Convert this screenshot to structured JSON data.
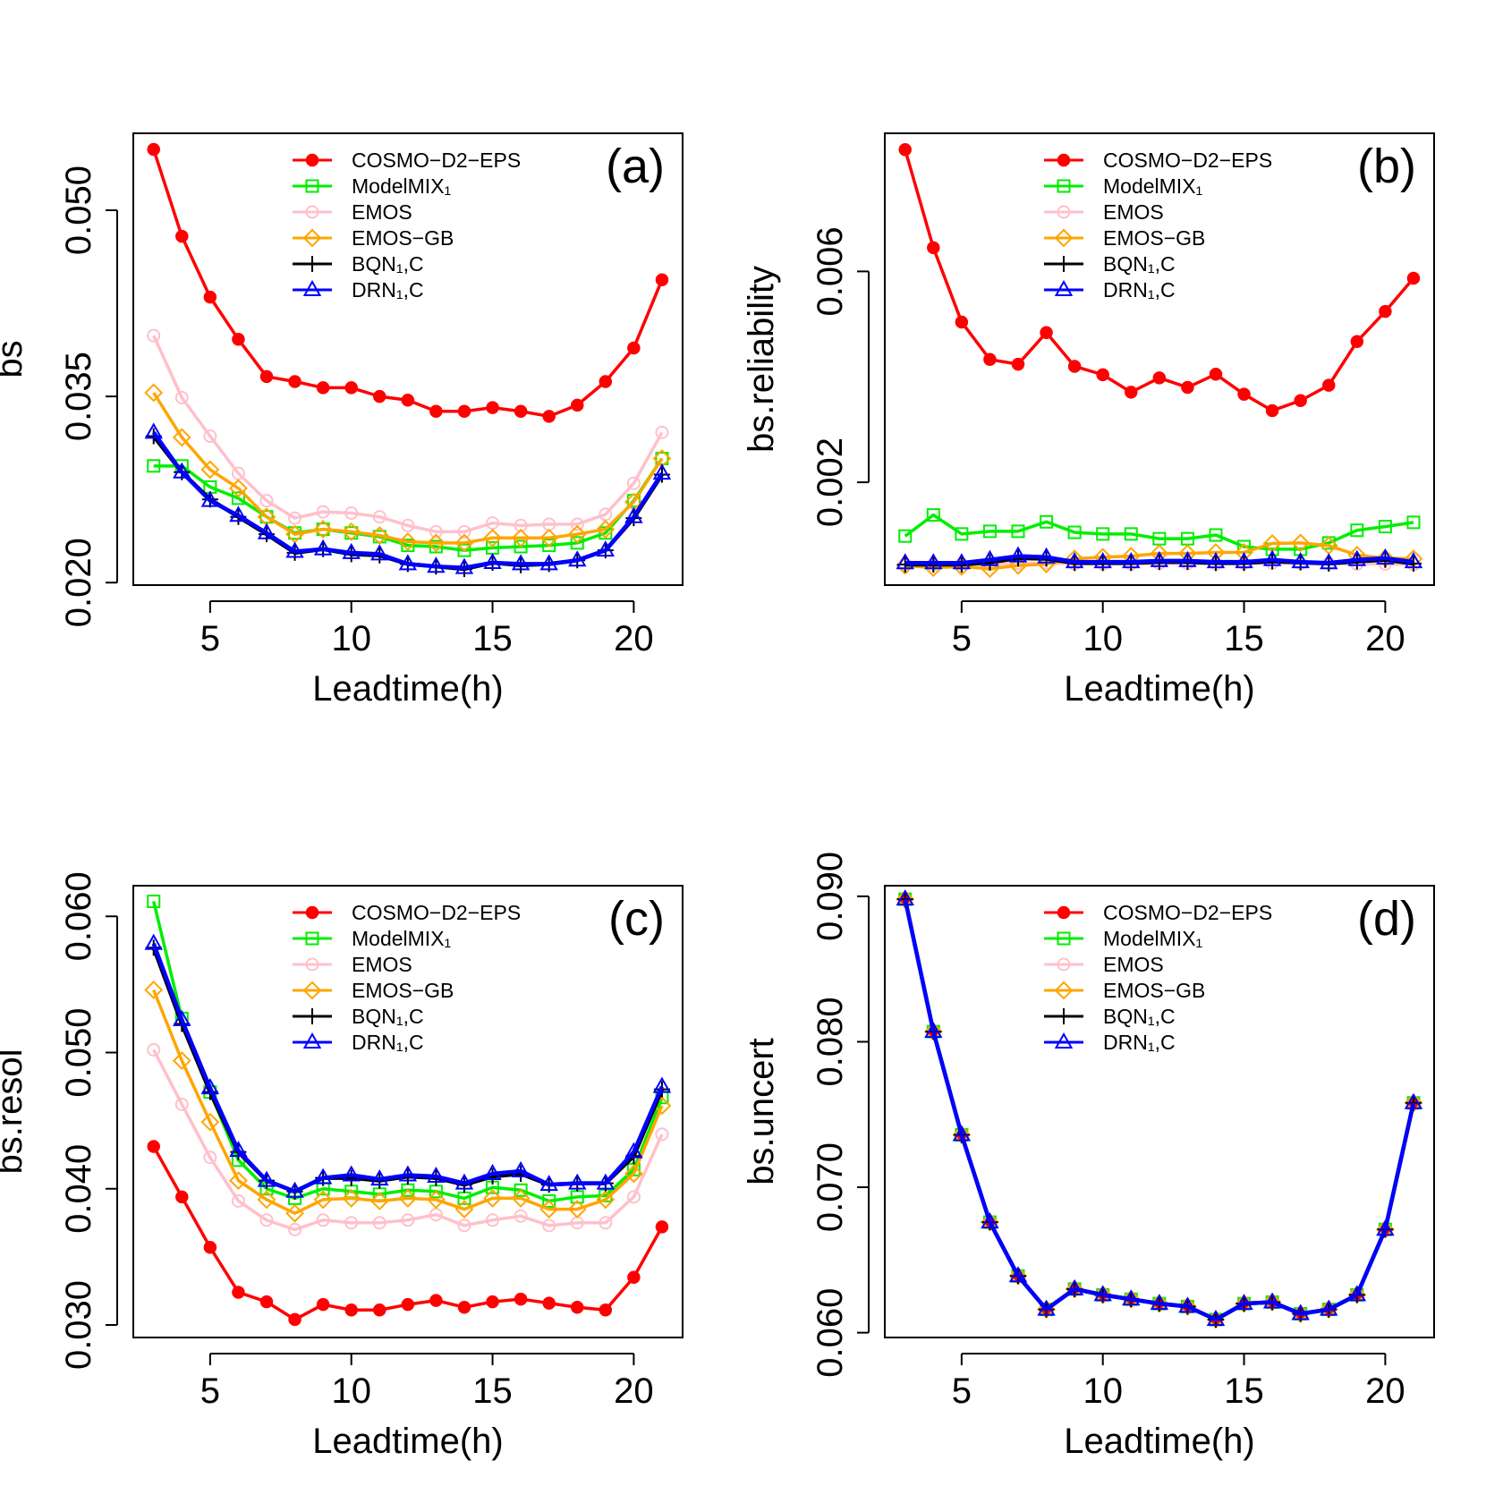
{
  "chart_data": [
    {
      "type": "line",
      "panel_label": "(a)",
      "xlabel": "Leadtime(h)",
      "ylabel": "bs",
      "x": [
        3,
        4,
        5,
        6,
        7,
        8,
        9,
        10,
        11,
        12,
        13,
        14,
        15,
        16,
        17,
        18,
        19,
        20,
        21
      ],
      "xlim": [
        2.28,
        21.73
      ],
      "xticks": [
        5,
        10,
        15,
        20
      ],
      "ylim": [
        0.0198,
        0.0562
      ],
      "yticks": [
        {
          "value": 0.02,
          "label": "0.020"
        },
        0.035,
        {
          "value": 0.05,
          "label": "0.050"
        }
      ],
      "legend": "top",
      "grid": false,
      "series": [
        {
          "name": "COSMO−D2−EPS",
          "color": "#ff0000",
          "marker": "filled-circle",
          "values": [
            0.0549,
            0.0479,
            0.043,
            0.0396,
            0.0366,
            0.0362,
            0.0357,
            0.0357,
            0.035,
            0.0347,
            0.0338,
            0.0338,
            0.0341,
            0.0338,
            0.0334,
            0.0343,
            0.0362,
            0.0389,
            0.0444
          ]
        },
        {
          "name": "ModelMIX₁",
          "color": "#00ee00",
          "marker": "square",
          "values": [
            0.0294,
            0.0294,
            0.0277,
            0.0268,
            0.0253,
            0.024,
            0.0243,
            0.024,
            0.0237,
            0.023,
            0.0229,
            0.0226,
            0.0228,
            0.0229,
            0.023,
            0.0232,
            0.024,
            0.0266,
            0.03
          ]
        },
        {
          "name": "EMOS",
          "color": "#ffc0cb",
          "marker": "circle",
          "values": [
            0.0399,
            0.0349,
            0.0318,
            0.0288,
            0.0266,
            0.0252,
            0.0257,
            0.0256,
            0.0253,
            0.0246,
            0.0241,
            0.0241,
            0.0248,
            0.0246,
            0.0247,
            0.0247,
            0.0255,
            0.028,
            0.0321
          ]
        },
        {
          "name": "EMOS−GB",
          "color": "#ffa500",
          "marker": "diamond",
          "values": [
            0.0353,
            0.0317,
            0.0291,
            0.0276,
            0.0253,
            0.0239,
            0.0243,
            0.0241,
            0.0238,
            0.0233,
            0.0232,
            0.0232,
            0.0236,
            0.0236,
            0.0236,
            0.0239,
            0.0243,
            0.0265,
            0.03
          ]
        },
        {
          "name": "BQN₁,C",
          "color": "#000000",
          "marker": "plus",
          "values": [
            0.0318,
            0.0289,
            0.0267,
            0.0253,
            0.0239,
            0.0224,
            0.0227,
            0.0223,
            0.0222,
            0.0215,
            0.0213,
            0.0211,
            0.0216,
            0.0214,
            0.0215,
            0.0218,
            0.0226,
            0.0252,
            0.0287
          ]
        },
        {
          "name": "DRN₁,C",
          "color": "#0000ff",
          "marker": "triangle",
          "values": [
            0.0321,
            0.0289,
            0.0266,
            0.0254,
            0.024,
            0.0225,
            0.0227,
            0.0224,
            0.0223,
            0.0215,
            0.0213,
            0.0212,
            0.0216,
            0.0215,
            0.0215,
            0.0218,
            0.0226,
            0.0253,
            0.0288
          ]
        }
      ]
    },
    {
      "type": "line",
      "panel_label": "(b)",
      "xlabel": "Leadtime(h)",
      "ylabel": "bs.reliability",
      "x": [
        3,
        4,
        5,
        6,
        7,
        8,
        9,
        10,
        11,
        12,
        13,
        14,
        15,
        16,
        17,
        18,
        19,
        20,
        21
      ],
      "xlim": [
        2.28,
        21.73
      ],
      "xticks": [
        5,
        10,
        15,
        20
      ],
      "ylim": [
        5e-05,
        0.00862
      ],
      "yticks": [
        0.002,
        0.006
      ],
      "legend": "top",
      "grid": false,
      "series": [
        {
          "name": "COSMO−D2−EPS",
          "color": "#ff0000",
          "marker": "filled-circle",
          "values": [
            0.00831,
            0.00645,
            0.00504,
            0.00433,
            0.00424,
            0.00484,
            0.0042,
            0.00404,
            0.00371,
            0.00398,
            0.0038,
            0.00405,
            0.00367,
            0.00336,
            0.00355,
            0.00384,
            0.00467,
            0.00524,
            0.00587
          ]
        },
        {
          "name": "ModelMIX₁",
          "color": "#00ee00",
          "marker": "square",
          "values": [
            0.00098,
            0.00138,
            0.00102,
            0.00107,
            0.00107,
            0.00125,
            0.00105,
            0.00102,
            0.00102,
            0.00093,
            0.00093,
            0.001,
            0.00078,
            0.00073,
            0.00073,
            0.00085,
            0.00109,
            0.00116,
            0.00124
          ]
        },
        {
          "name": "EMOS",
          "color": "#ffc0cb",
          "marker": "circle",
          "values": [
            0.00045,
            0.00044,
            0.00045,
            0.00044,
            0.00046,
            0.00047,
            0.00045,
            0.00045,
            0.00045,
            0.00046,
            0.00046,
            0.00045,
            0.00046,
            0.00047,
            0.00046,
            0.00046,
            0.00045,
            0.00045,
            0.00044
          ]
        },
        {
          "name": "EMOS−GB",
          "color": "#ffa500",
          "marker": "diamond",
          "values": [
            0.00042,
            0.00038,
            0.0004,
            0.00036,
            0.00042,
            0.00045,
            0.00055,
            0.00058,
            0.0006,
            0.00065,
            0.00065,
            0.00067,
            0.00067,
            0.00084,
            0.00085,
            0.0008,
            0.00062,
            0.00056,
            0.00055
          ]
        },
        {
          "name": "BQN₁,C",
          "color": "#000000",
          "marker": "plus",
          "values": [
            0.00044,
            0.00044,
            0.00044,
            0.00048,
            0.00056,
            0.00055,
            0.00047,
            0.00047,
            0.00047,
            0.00049,
            0.00049,
            0.00047,
            0.00047,
            0.0005,
            0.00048,
            0.00046,
            0.0005,
            0.00053,
            0.00046
          ]
        },
        {
          "name": "DRN₁,C",
          "color": "#0000ff",
          "marker": "triangle",
          "values": [
            0.00047,
            0.00047,
            0.00047,
            0.00053,
            0.0006,
            0.00058,
            0.00049,
            0.00049,
            0.00049,
            0.00051,
            0.00051,
            0.00049,
            0.00049,
            0.00053,
            0.00049,
            0.00047,
            0.00053,
            0.00056,
            0.00049
          ]
        }
      ]
    },
    {
      "type": "line",
      "panel_label": "(c)",
      "xlabel": "Leadtime(h)",
      "ylabel": "bs.resol",
      "x": [
        3,
        4,
        5,
        6,
        7,
        8,
        9,
        10,
        11,
        12,
        13,
        14,
        15,
        16,
        17,
        18,
        19,
        20,
        21
      ],
      "xlim": [
        2.28,
        21.73
      ],
      "xticks": [
        5,
        10,
        15,
        20
      ],
      "ylim": [
        0.02908,
        0.06225
      ],
      "yticks": [
        {
          "value": 0.03,
          "label": "0.030"
        },
        {
          "value": 0.04,
          "label": "0.040"
        },
        {
          "value": 0.05,
          "label": "0.050"
        },
        {
          "value": 0.06,
          "label": "0.060"
        }
      ],
      "legend": "top",
      "grid": false,
      "series": [
        {
          "name": "COSMO−D2−EPS",
          "color": "#ff0000",
          "marker": "filled-circle",
          "values": [
            0.0431,
            0.0394,
            0.0357,
            0.0324,
            0.0317,
            0.0304,
            0.0315,
            0.0311,
            0.0311,
            0.0315,
            0.0318,
            0.0313,
            0.0317,
            0.0319,
            0.0316,
            0.0313,
            0.0311,
            0.0335,
            0.0372
          ]
        },
        {
          "name": "ModelMIX₁",
          "color": "#00ee00",
          "marker": "square",
          "values": [
            0.0611,
            0.0525,
            0.0471,
            0.0421,
            0.04,
            0.0393,
            0.04,
            0.0398,
            0.0396,
            0.0399,
            0.0398,
            0.0393,
            0.0401,
            0.0399,
            0.0391,
            0.0394,
            0.0395,
            0.0414,
            0.0467
          ]
        },
        {
          "name": "EMOS",
          "color": "#ffc0cb",
          "marker": "circle",
          "values": [
            0.0502,
            0.0462,
            0.0423,
            0.0391,
            0.0377,
            0.037,
            0.0377,
            0.0375,
            0.0375,
            0.0377,
            0.0381,
            0.0373,
            0.0377,
            0.038,
            0.0373,
            0.0375,
            0.0375,
            0.0394,
            0.044
          ]
        },
        {
          "name": "EMOS−GB",
          "color": "#ffa500",
          "marker": "diamond",
          "values": [
            0.0546,
            0.0494,
            0.0449,
            0.0406,
            0.0392,
            0.0382,
            0.0392,
            0.0393,
            0.0391,
            0.0393,
            0.0392,
            0.0385,
            0.0393,
            0.0393,
            0.0385,
            0.0385,
            0.0392,
            0.0411,
            0.0461
          ]
        },
        {
          "name": "BQN₁,C",
          "color": "#000000",
          "marker": "plus",
          "values": [
            0.0577,
            0.0521,
            0.0471,
            0.0427,
            0.0406,
            0.0398,
            0.0408,
            0.0408,
            0.0406,
            0.0409,
            0.0408,
            0.0403,
            0.0409,
            0.0411,
            0.0403,
            0.0404,
            0.0404,
            0.0424,
            0.0473
          ]
        },
        {
          "name": "DRN₁,C",
          "color": "#0000ff",
          "marker": "triangle",
          "values": [
            0.058,
            0.0524,
            0.0474,
            0.0428,
            0.0406,
            0.0398,
            0.0408,
            0.041,
            0.0407,
            0.041,
            0.0409,
            0.0404,
            0.0411,
            0.0413,
            0.0403,
            0.0404,
            0.0404,
            0.0427,
            0.0475
          ]
        }
      ]
    },
    {
      "type": "line",
      "panel_label": "(d)",
      "xlabel": "Leadtime(h)",
      "ylabel": "bs.uncert",
      "x": [
        3,
        4,
        5,
        6,
        7,
        8,
        9,
        10,
        11,
        12,
        13,
        14,
        15,
        16,
        17,
        18,
        19,
        20,
        21
      ],
      "xlim": [
        2.28,
        21.73
      ],
      "xticks": [
        5,
        10,
        15,
        20
      ],
      "ylim": [
        0.05967,
        0.09073
      ],
      "yticks": [
        {
          "value": 0.06,
          "label": "0.060"
        },
        {
          "value": 0.07,
          "label": "0.070"
        },
        {
          "value": 0.08,
          "label": "0.080"
        },
        {
          "value": 0.09,
          "label": "0.090"
        }
      ],
      "legend": "top",
      "grid": false,
      "series": [
        {
          "name": "COSMO−D2−EPS",
          "color": "#ff0000",
          "marker": "filled-circle",
          "values": [
            0.0898,
            0.0807,
            0.0736,
            0.0676,
            0.0639,
            0.0616,
            0.063,
            0.0626,
            0.0623,
            0.062,
            0.0618,
            0.0609,
            0.062,
            0.0621,
            0.0613,
            0.0616,
            0.0626,
            0.0671,
            0.0758
          ]
        },
        {
          "name": "ModelMIX₁",
          "color": "#00ee00",
          "marker": "square",
          "values": [
            0.0898,
            0.0807,
            0.0736,
            0.0676,
            0.0639,
            0.0616,
            0.063,
            0.0626,
            0.0623,
            0.062,
            0.0618,
            0.0609,
            0.062,
            0.0621,
            0.0613,
            0.0616,
            0.0626,
            0.0671,
            0.0758
          ]
        },
        {
          "name": "EMOS",
          "color": "#ffc0cb",
          "marker": "circle",
          "values": [
            0.0898,
            0.0807,
            0.0736,
            0.0676,
            0.0639,
            0.0616,
            0.063,
            0.0626,
            0.0623,
            0.062,
            0.0618,
            0.0609,
            0.062,
            0.0621,
            0.0613,
            0.0616,
            0.0626,
            0.0671,
            0.0758
          ]
        },
        {
          "name": "EMOS−GB",
          "color": "#ffa500",
          "marker": "diamond",
          "values": [
            0.0898,
            0.0807,
            0.0736,
            0.0676,
            0.0639,
            0.0616,
            0.063,
            0.0626,
            0.0623,
            0.062,
            0.0618,
            0.0609,
            0.062,
            0.0621,
            0.0613,
            0.0616,
            0.0626,
            0.0671,
            0.0758
          ]
        },
        {
          "name": "BQN₁,C",
          "color": "#000000",
          "marker": "plus",
          "values": [
            0.0898,
            0.0807,
            0.0736,
            0.0676,
            0.0639,
            0.0616,
            0.063,
            0.0626,
            0.0623,
            0.062,
            0.0618,
            0.0609,
            0.062,
            0.0621,
            0.0613,
            0.0616,
            0.0626,
            0.0671,
            0.0758
          ]
        },
        {
          "name": "DRN₁,C",
          "color": "#0000ff",
          "marker": "triangle",
          "values": [
            0.0898,
            0.0807,
            0.0736,
            0.0676,
            0.0639,
            0.0616,
            0.063,
            0.0626,
            0.0623,
            0.062,
            0.0618,
            0.0609,
            0.062,
            0.0621,
            0.0613,
            0.0616,
            0.0626,
            0.0671,
            0.0758
          ]
        }
      ]
    }
  ]
}
